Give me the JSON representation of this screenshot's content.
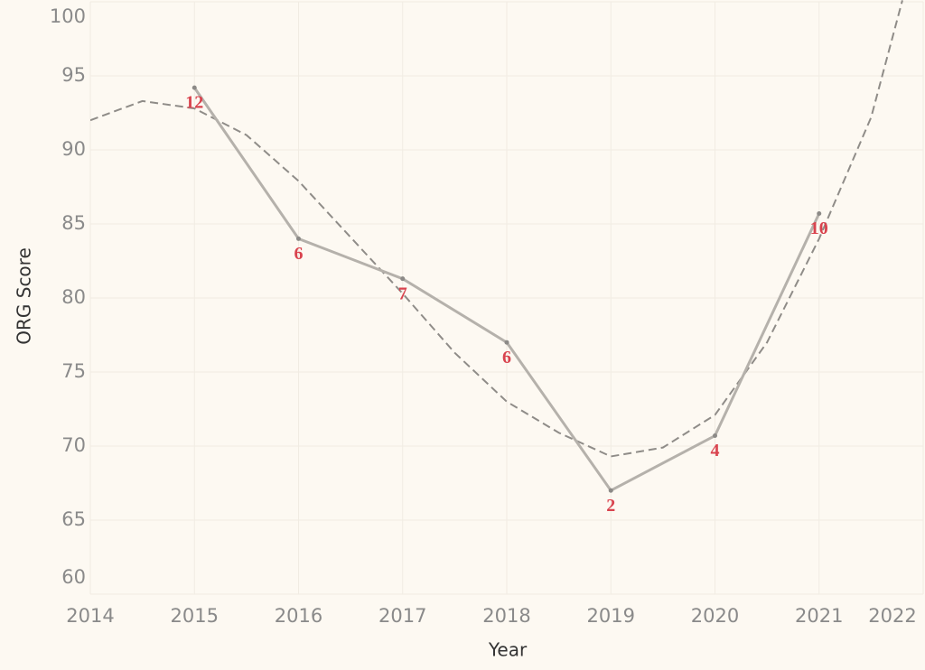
{
  "chart_data": {
    "type": "line",
    "x_title": "Year",
    "y_title": "ORG Score",
    "x": [
      2015,
      2016,
      2017,
      2018,
      2019,
      2020,
      2021
    ],
    "series": [
      {
        "name": "ORG Score",
        "color": "#b5b1ab",
        "values": [
          94.2,
          84.0,
          81.3,
          77.0,
          67.0,
          70.7,
          85.7
        ]
      }
    ],
    "point_labels": [
      12,
      6,
      7,
      6,
      2,
      4,
      10
    ],
    "label_color": "#d9434e",
    "trend": {
      "color": "#8f8c88",
      "x": [
        2014,
        2014.5,
        2015,
        2015.5,
        2016,
        2016.5,
        2017,
        2017.5,
        2018,
        2018.5,
        2019,
        2019.5,
        2020,
        2020.5,
        2021,
        2021.5,
        2021.8
      ],
      "values": [
        92.0,
        93.3,
        92.8,
        91.0,
        87.9,
        84.1,
        80.3,
        76.3,
        73.0,
        70.9,
        69.3,
        69.9,
        72.1,
        77.0,
        84.0,
        92.2,
        100.1
      ]
    },
    "xlim": [
      2014,
      2022
    ],
    "xticks": [
      2014,
      2015,
      2016,
      2017,
      2018,
      2019,
      2020,
      2021,
      2022
    ],
    "ylim": [
      60,
      100
    ],
    "yticks": [
      60,
      65,
      70,
      75,
      80,
      85,
      90,
      95,
      100
    ],
    "grid": true
  }
}
